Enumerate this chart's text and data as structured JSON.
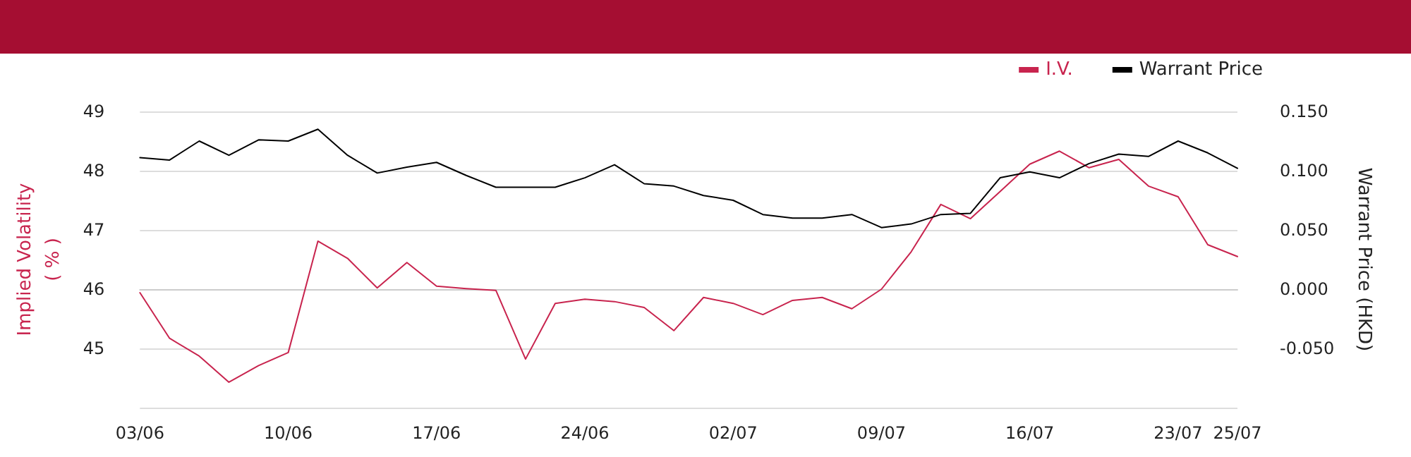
{
  "chart_data": {
    "type": "line",
    "categories": [
      "03/06",
      null,
      null,
      null,
      null,
      "10/06",
      null,
      null,
      null,
      null,
      "17/06",
      null,
      null,
      null,
      null,
      "24/06",
      null,
      null,
      null,
      null,
      "02/07",
      null,
      null,
      null,
      null,
      "09/07",
      null,
      null,
      null,
      null,
      "16/07",
      null,
      null,
      null,
      null,
      "23/07",
      null,
      "25/07"
    ],
    "ylabel": "Implied Volatility\n( % )",
    "y2label": "Warrant Price (HKD)",
    "series": [
      {
        "name": "I.V.",
        "color": "#c8244e",
        "values": [
          45.94,
          45.17,
          44.87,
          44.43,
          44.71,
          44.93,
          46.81,
          46.52,
          46.02,
          46.45,
          46.05,
          46.01,
          45.98,
          44.82,
          45.76,
          45.83,
          45.79,
          45.69,
          45.3,
          45.86,
          45.76,
          45.57,
          45.81,
          45.86,
          45.67,
          46.0,
          46.63,
          47.43,
          47.19,
          47.65,
          48.11,
          48.33,
          48.05,
          48.19,
          47.74,
          47.56,
          46.75,
          46.55
        ]
      },
      {
        "name": "Warrant Price",
        "color": "#000000",
        "axis": "y2",
        "values": [
          0.111,
          0.109,
          0.125,
          0.113,
          0.126,
          0.125,
          0.135,
          0.113,
          0.098,
          0.103,
          0.107,
          0.096,
          0.086,
          0.086,
          0.086,
          0.094,
          0.105,
          0.089,
          0.087,
          0.079,
          0.075,
          0.063,
          0.06,
          0.06,
          0.063,
          0.052,
          0.055,
          0.063,
          0.064,
          0.094,
          0.099,
          0.094,
          0.106,
          0.114,
          0.112,
          0.125,
          0.115,
          0.102
        ]
      }
    ],
    "ylim": [
      44,
      49
    ],
    "yticks": [
      {
        "value": 44,
        "label": null
      },
      45,
      46,
      47,
      48,
      49
    ],
    "y2lim": [
      -0.1,
      0.15
    ],
    "y2ticks": [
      {
        "value": -0.1,
        "label": null
      },
      {
        "value": -0.05,
        "label": "-0.050"
      },
      {
        "value": 0,
        "label": "0.000"
      },
      {
        "value": 0.05,
        "label": "0.050"
      },
      {
        "value": 0.1,
        "label": "0.100"
      },
      {
        "value": 0.15,
        "label": "0.150"
      }
    ],
    "grid": "y",
    "legend": "top right",
    "marker": "none",
    "line_style": "solid"
  }
}
